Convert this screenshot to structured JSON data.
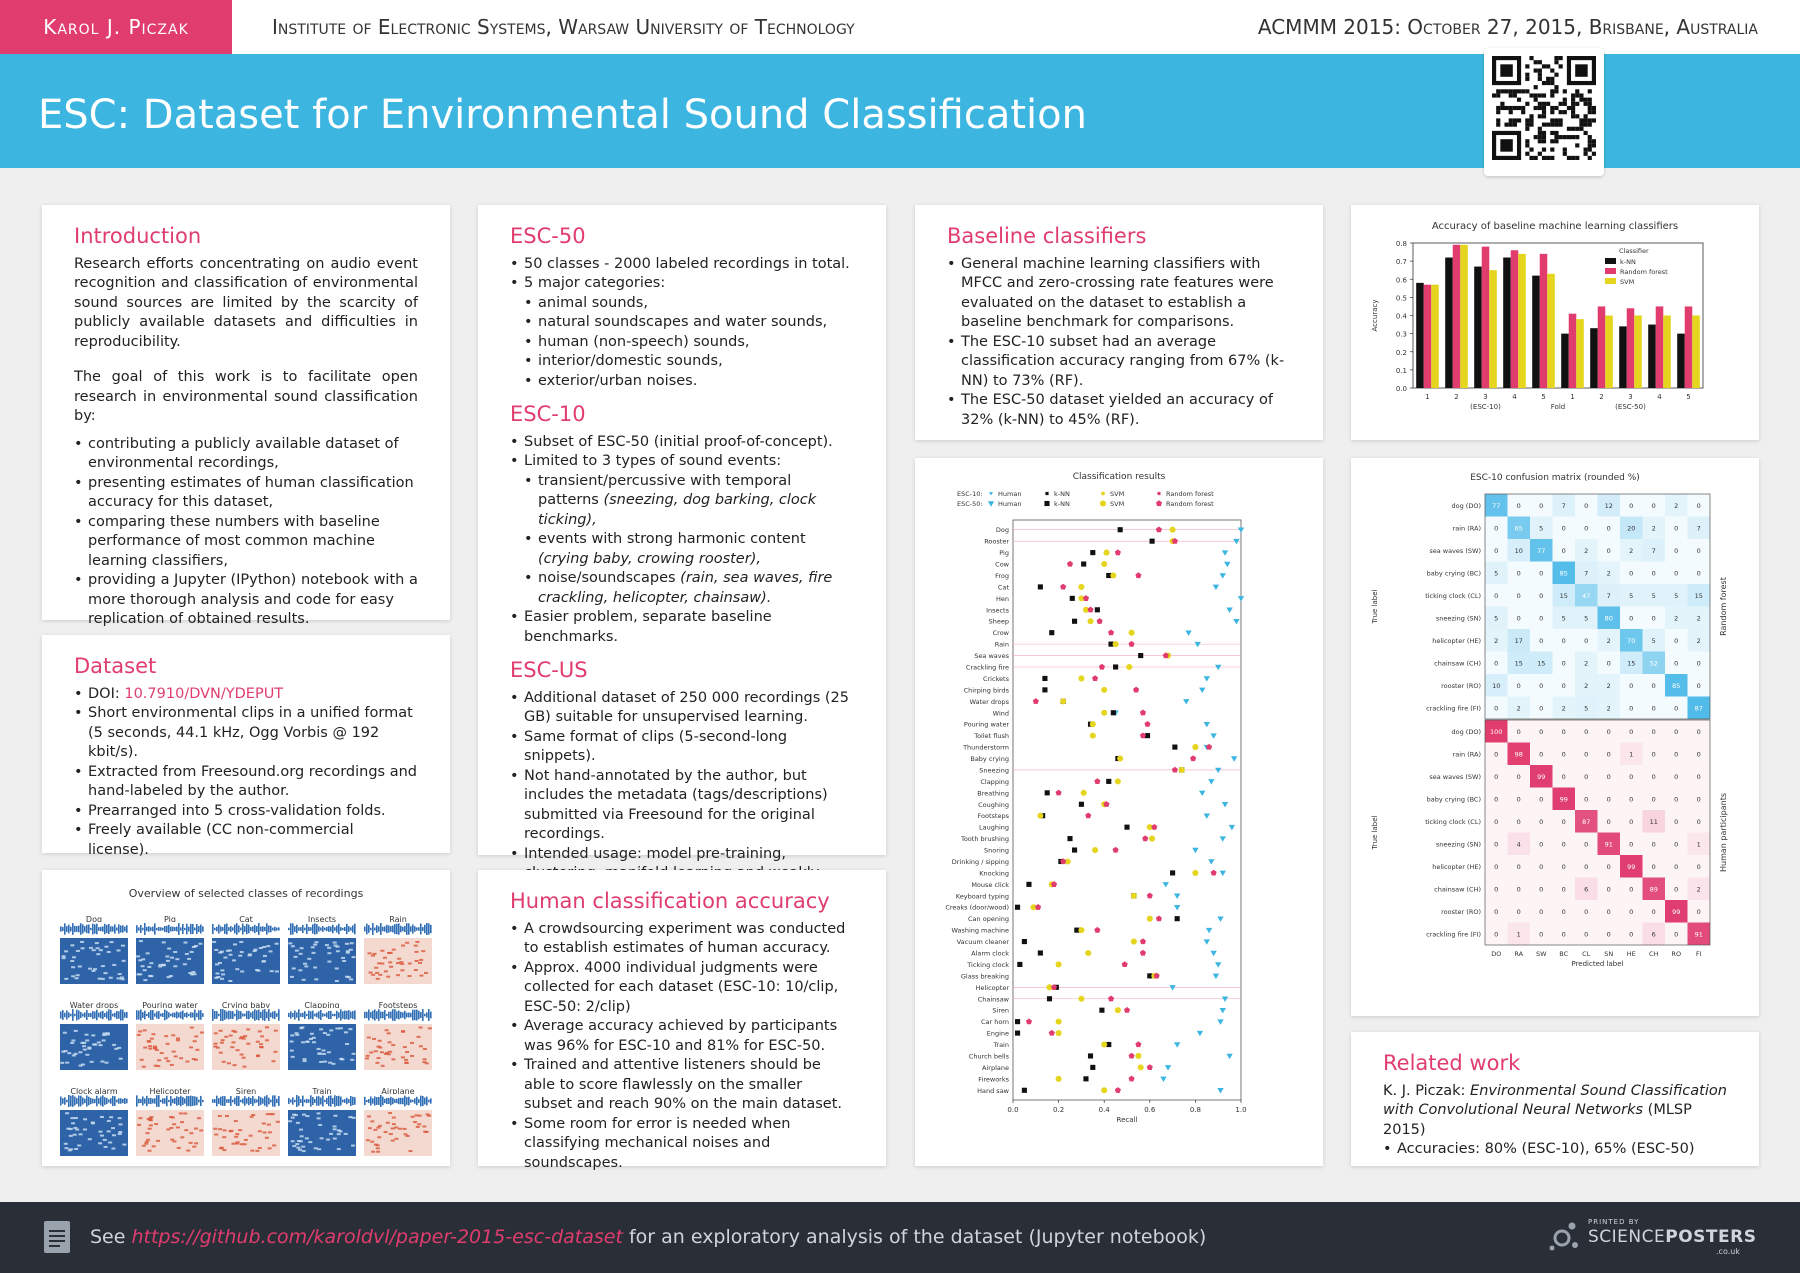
{
  "header": {
    "author": "Karol J. Piczak",
    "institute": "Institute of Electronic Systems, Warsaw University of Technology",
    "conference": "ACMMM 2015: October 27, 2015, Brisbane, Australia",
    "title": "ESC: Dataset for Environmental Sound Classification"
  },
  "introduction": {
    "heading": "Introduction",
    "p1": "Research efforts concentrating on audio event recognition and classification of environmental sound sources are limited by the scarcity of publicly available datasets and difficulties in reproducibility.",
    "p2": "The goal of this work is to facilitate open research in environmental sound classification by:",
    "bullets": [
      "contributing a publicly available dataset of environmental recordings,",
      "presenting estimates of human classification accuracy for this dataset,",
      "comparing these numbers with baseline performance of most common machine learning classifiers,",
      "providing a Jupyter (IPython) notebook with a more thorough analysis and code for easy replication of obtained results."
    ]
  },
  "dataset": {
    "heading": "Dataset",
    "doi_label": "DOI: ",
    "doi": "10.7910/DVN/YDEPUT",
    "bullets": [
      "Short environmental clips in a unified format (5 seconds, 44.1 kHz, Ogg Vorbis @ 192 kbit/s).",
      "Extracted from Freesound.org recordings and hand-labeled by the author.",
      "Prearranged into 5 cross-validation folds.",
      "Freely available (CC non-commercial license)."
    ]
  },
  "overview": {
    "title": "Overview of selected classes of recordings",
    "classes": [
      "Dog",
      "Pig",
      "Cat",
      "Insects",
      "Rain",
      "Water drops",
      "Pouring water",
      "Crying baby",
      "Clapping",
      "Footsteps",
      "Clock alarm",
      "Helicopter",
      "Siren",
      "Train",
      "Airplane"
    ]
  },
  "esc50": {
    "heading": "ESC-50",
    "bullets": [
      "50 classes - 2000 labeled recordings in total.",
      "5 major categories:"
    ],
    "categories": [
      "animal sounds,",
      "natural soundscapes and water sounds,",
      "human (non-speech) sounds,",
      "interior/domestic sounds,",
      "exterior/urban noises."
    ]
  },
  "esc10": {
    "heading": "ESC-10",
    "b1": "Subset of ESC-50 (initial proof-of-concept).",
    "b2": "Limited to 3 types of sound events:",
    "s1": "transient/percussive with temporal patterns",
    "s1_ex": "(sneezing, dog barking, clock ticking),",
    "s2": "events with strong harmonic content",
    "s2_ex": "(crying baby, crowing rooster),",
    "s3": "noise/soundscapes",
    "s3_ex": "(rain, sea waves, fire crackling, helicopter, chainsaw).",
    "b3": "Easier problem, separate baseline benchmarks."
  },
  "escus": {
    "heading": "ESC-US",
    "bullets": [
      "Additional dataset of 250 000 recordings (25 GB) suitable for unsupervised learning.",
      "Same format of clips (5-second-long snippets).",
      "Not hand-annotated by the author, but includes the metadata (tags/descriptions) submitted via Freesound for the original recordings.",
      "Intended usage: model pre-training, clustering, manifold learning and weakly supervised (partially missing/noisy labels) experiments."
    ]
  },
  "human": {
    "heading": "Human classification accuracy",
    "bullets": [
      "A crowdsourcing experiment was conducted to establish estimates of human accuracy.",
      "Approx. 4000 individual judgments were collected for each dataset (ESC-10: 10/clip, ESC-50: 2/clip)",
      "Average accuracy achieved by participants was 96% for ESC-10 and 81% for ESC-50.",
      "Trained and attentive listeners should be able to score flawlessly on the smaller subset and reach 90% on the main dataset.",
      "Some room for error is needed when classifying mechanical noises and soundscapes."
    ]
  },
  "baseline": {
    "heading": "Baseline classifiers",
    "bullets": [
      "General machine learning classifiers with MFCC and zero-crossing rate features were evaluated on the dataset to establish a baseline benchmark for comparisons.",
      "The ESC-10 subset had an average classification accuracy ranging from 67% (k-NN) to 73% (RF).",
      "The ESC-50 dataset yielded an accuracy of 32% (k-NN) to 45% (RF)."
    ]
  },
  "related": {
    "heading": "Related work",
    "ref_author": "K. J. Piczak: ",
    "ref_title": "Environmental Sound Classification with Convolutional Neural Networks",
    "ref_venue": " (MLSP 2015)",
    "bullet": "Accuracies: 80% (ESC-10), 65% (ESC-50)"
  },
  "footer": {
    "prefix": "See ",
    "link": "https://github.com/karoldvl/paper-2015-esc-dataset",
    "suffix": " for an exploratory analysis of the dataset (Jupyter notebook)",
    "printed_by": "PRINTED BY",
    "brand1": "SCIENCE",
    "brand2": "POSTERS",
    "domain": ".co.uk"
  },
  "colors": {
    "accent": "#e03c6e",
    "title_bar": "#3cb6e1",
    "knn": "#111111",
    "rf": "#e03c6e",
    "svm": "#e6d51e",
    "human": "#3cb6e1"
  },
  "chart_data": [
    {
      "type": "bar",
      "title": "Accuracy of baseline machine learning classifiers",
      "xlabel": "Fold",
      "ylabel": "Accuracy",
      "categories": [
        "1",
        "2",
        "3",
        "4",
        "5",
        "1",
        "2",
        "3",
        "4",
        "5"
      ],
      "group_labels": [
        "(ESC-10)",
        "(ESC-50)"
      ],
      "ylim": [
        0,
        0.8
      ],
      "yticks": [
        "0.0",
        "0.1",
        "0.2",
        "0.3",
        "0.4",
        "0.5",
        "0.6",
        "0.7",
        "0.8"
      ],
      "legend_title": "Classifier",
      "series": [
        {
          "name": "k-NN",
          "values": [
            0.58,
            0.72,
            0.67,
            0.72,
            0.62,
            0.3,
            0.33,
            0.34,
            0.35,
            0.3
          ]
        },
        {
          "name": "Random forest",
          "values": [
            0.57,
            0.79,
            0.78,
            0.76,
            0.74,
            0.41,
            0.45,
            0.44,
            0.45,
            0.45
          ]
        },
        {
          "name": "SVM",
          "values": [
            0.57,
            0.79,
            0.65,
            0.74,
            0.63,
            0.38,
            0.4,
            0.4,
            0.4,
            0.4
          ]
        }
      ]
    },
    {
      "type": "scatter",
      "title": "Classification results",
      "xlabel": "Recall",
      "xlim": [
        0,
        1
      ],
      "xticks": [
        "0.0",
        "0.2",
        "0.4",
        "0.6",
        "0.8",
        "1.0"
      ],
      "legend": {
        "esc10_label": "ESC-10:",
        "esc50_label": "ESC-50:",
        "names": [
          "Human",
          "k-NN",
          "SVM",
          "Random forest"
        ]
      },
      "series_order": [
        "Human",
        "k-NN",
        "SVM",
        "Random forest"
      ],
      "esc10_classes": [
        "Dog",
        "Rooster",
        "Rain",
        "Sea waves",
        "Crackling fire",
        "Crying baby",
        "Sneezing",
        "Clock tick",
        "Helicopter",
        "Chainsaw"
      ],
      "classes": [
        {
          "name": "Dog",
          "v": [
            1.0,
            0.47,
            0.7,
            0.64
          ]
        },
        {
          "name": "Rooster",
          "v": [
            0.98,
            0.61,
            0.7,
            0.71
          ]
        },
        {
          "name": "Pig",
          "v": [
            0.93,
            0.35,
            0.41,
            0.46
          ]
        },
        {
          "name": "Cow",
          "v": [
            0.94,
            0.31,
            0.4,
            0.25
          ]
        },
        {
          "name": "Frog",
          "v": [
            0.92,
            0.42,
            0.44,
            0.55
          ]
        },
        {
          "name": "Cat",
          "v": [
            0.89,
            0.12,
            0.3,
            0.22
          ]
        },
        {
          "name": "Hen",
          "v": [
            1.0,
            0.26,
            0.3,
            0.32
          ]
        },
        {
          "name": "Insects",
          "v": [
            0.95,
            0.37,
            0.32,
            0.34
          ]
        },
        {
          "name": "Sheep",
          "v": [
            0.98,
            0.27,
            0.34,
            0.38
          ]
        },
        {
          "name": "Crow",
          "v": [
            0.77,
            0.17,
            0.52,
            0.43
          ]
        },
        {
          "name": "Rain",
          "v": [
            0.81,
            0.43,
            0.45,
            0.52
          ]
        },
        {
          "name": "Sea waves",
          "v": [
            0.68,
            0.56,
            0.68,
            0.67
          ]
        },
        {
          "name": "Crackling fire",
          "v": [
            0.9,
            0.45,
            0.51,
            0.39
          ]
        },
        {
          "name": "Crickets",
          "v": [
            0.85,
            0.14,
            0.3,
            0.36
          ]
        },
        {
          "name": "Chirping birds",
          "v": [
            0.83,
            0.14,
            0.4,
            0.54
          ]
        },
        {
          "name": "Water drops",
          "v": [
            0.76,
            0.22,
            0.22,
            0.1
          ]
        },
        {
          "name": "Wind",
          "v": [
            0.45,
            0.44,
            0.4,
            0.57
          ]
        },
        {
          "name": "Pouring water",
          "v": [
            0.85,
            0.34,
            0.35,
            0.59
          ]
        },
        {
          "name": "Toilet flush",
          "v": [
            0.88,
            0.59,
            0.35,
            0.57
          ]
        },
        {
          "name": "Thunderstorm",
          "v": [
            0.85,
            0.71,
            0.8,
            0.86
          ]
        },
        {
          "name": "Baby crying",
          "v": [
            0.97,
            0.46,
            0.47,
            0.79
          ]
        },
        {
          "name": "Sneezing",
          "v": [
            0.9,
            0.74,
            0.74,
            0.71
          ]
        },
        {
          "name": "Clapping",
          "v": [
            0.87,
            0.42,
            0.46,
            0.37
          ]
        },
        {
          "name": "Breathing",
          "v": [
            0.83,
            0.15,
            0.31,
            0.2
          ]
        },
        {
          "name": "Coughing",
          "v": [
            0.93,
            0.3,
            0.4,
            0.41
          ]
        },
        {
          "name": "Footsteps",
          "v": [
            0.85,
            0.13,
            0.12,
            0.33
          ]
        },
        {
          "name": "Laughing",
          "v": [
            0.96,
            0.5,
            0.6,
            0.62
          ]
        },
        {
          "name": "Tooth brushing",
          "v": [
            0.92,
            0.25,
            0.61,
            0.58
          ]
        },
        {
          "name": "Snoring",
          "v": [
            0.8,
            0.27,
            0.36,
            0.45
          ]
        },
        {
          "name": "Drinking / sipping",
          "v": [
            0.87,
            0.21,
            0.24,
            0.22
          ]
        },
        {
          "name": "Knocking",
          "v": [
            0.92,
            0.7,
            0.8,
            0.88
          ]
        },
        {
          "name": "Mouse click",
          "v": [
            0.67,
            0.07,
            0.17,
            0.18
          ]
        },
        {
          "name": "Keyboard typing",
          "v": [
            0.72,
            0.53,
            0.53,
            0.6
          ]
        },
        {
          "name": "Creaks (door/wood)",
          "v": [
            0.72,
            0.02,
            0.09,
            0.11
          ]
        },
        {
          "name": "Can opening",
          "v": [
            0.91,
            0.72,
            0.6,
            0.64
          ]
        },
        {
          "name": "Washing machine",
          "v": [
            0.86,
            0.28,
            0.3,
            0.37
          ]
        },
        {
          "name": "Vacuum cleaner",
          "v": [
            0.85,
            0.05,
            0.53,
            0.57
          ]
        },
        {
          "name": "Alarm clock",
          "v": [
            0.88,
            0.12,
            0.33,
            0.57
          ]
        },
        {
          "name": "Ticking clock",
          "v": [
            0.9,
            0.03,
            0.2,
            0.49
          ]
        },
        {
          "name": "Glass breaking",
          "v": [
            0.89,
            0.6,
            0.62,
            0.63
          ]
        },
        {
          "name": "Helicopter",
          "v": [
            0.7,
            0.19,
            0.16,
            0.18
          ]
        },
        {
          "name": "Chainsaw",
          "v": [
            0.93,
            0.16,
            0.3,
            0.43
          ]
        },
        {
          "name": "Siren",
          "v": [
            0.92,
            0.39,
            0.46,
            0.5
          ]
        },
        {
          "name": "Car horn",
          "v": [
            0.91,
            0.02,
            0.2,
            0.07
          ]
        },
        {
          "name": "Engine",
          "v": [
            0.82,
            0.02,
            0.2,
            0.17
          ]
        },
        {
          "name": "Train",
          "v": [
            0.72,
            0.42,
            0.4,
            0.55
          ]
        },
        {
          "name": "Church bells",
          "v": [
            0.95,
            0.34,
            0.55,
            0.52
          ]
        },
        {
          "name": "Airplane",
          "v": [
            0.68,
            0.35,
            0.56,
            0.6
          ]
        },
        {
          "name": "Fireworks",
          "v": [
            0.66,
            0.32,
            0.2,
            0.52
          ]
        },
        {
          "name": "Hand saw",
          "v": [
            0.91,
            0.05,
            0.4,
            0.46
          ]
        }
      ]
    },
    {
      "type": "heatmap",
      "title": "ESC-10 confusion matrix (rounded %)",
      "xlabel": "Predicted label",
      "ylabel": "True label",
      "rows": [
        "dog (DO)",
        "rain (RA)",
        "sea waves (SW)",
        "baby crying (BC)",
        "ticking clock (CL)",
        "sneezing (SN)",
        "helicopter (HE)",
        "chainsaw (CH)",
        "rooster (RO)",
        "crackling fire (FI)"
      ],
      "cols": [
        "DO",
        "RA",
        "SW",
        "BC",
        "CL",
        "SN",
        "HE",
        "CH",
        "RO",
        "FI"
      ],
      "matrices": [
        {
          "name": "Random forest",
          "values": [
            [
              77,
              0,
              0,
              7,
              0,
              12,
              0,
              0,
              2,
              0
            ],
            [
              0,
              65,
              5,
              0,
              0,
              0,
              20,
              2,
              0,
              7
            ],
            [
              0,
              10,
              77,
              0,
              2,
              0,
              2,
              7,
              0,
              0
            ],
            [
              5,
              0,
              0,
              85,
              7,
              2,
              0,
              0,
              0,
              0
            ],
            [
              0,
              0,
              0,
              15,
              47,
              7,
              5,
              5,
              5,
              15
            ],
            [
              5,
              0,
              0,
              5,
              5,
              80,
              0,
              0,
              2,
              2
            ],
            [
              2,
              17,
              0,
              0,
              0,
              2,
              70,
              5,
              0,
              2
            ],
            [
              0,
              15,
              15,
              0,
              2,
              0,
              15,
              52,
              0,
              0
            ],
            [
              10,
              0,
              0,
              0,
              2,
              2,
              0,
              0,
              85,
              0
            ],
            [
              0,
              2,
              0,
              2,
              5,
              2,
              0,
              0,
              0,
              87
            ]
          ]
        },
        {
          "name": "Human participants",
          "values": [
            [
              100,
              0,
              0,
              0,
              0,
              0,
              0,
              0,
              0,
              0
            ],
            [
              0,
              98,
              0,
              0,
              0,
              0,
              1,
              0,
              0,
              0
            ],
            [
              0,
              0,
              99,
              0,
              0,
              0,
              0,
              0,
              0,
              0
            ],
            [
              0,
              0,
              0,
              99,
              0,
              0,
              0,
              0,
              0,
              0
            ],
            [
              0,
              0,
              0,
              0,
              87,
              0,
              0,
              11,
              0,
              0
            ],
            [
              0,
              4,
              0,
              0,
              0,
              91,
              0,
              0,
              0,
              1
            ],
            [
              0,
              0,
              0,
              0,
              0,
              0,
              99,
              0,
              0,
              0
            ],
            [
              0,
              0,
              0,
              0,
              6,
              0,
              0,
              89,
              0,
              2
            ],
            [
              0,
              0,
              0,
              0,
              0,
              0,
              0,
              0,
              99,
              0
            ],
            [
              0,
              1,
              0,
              0,
              0,
              0,
              0,
              6,
              0,
              91
            ]
          ]
        }
      ]
    }
  ]
}
